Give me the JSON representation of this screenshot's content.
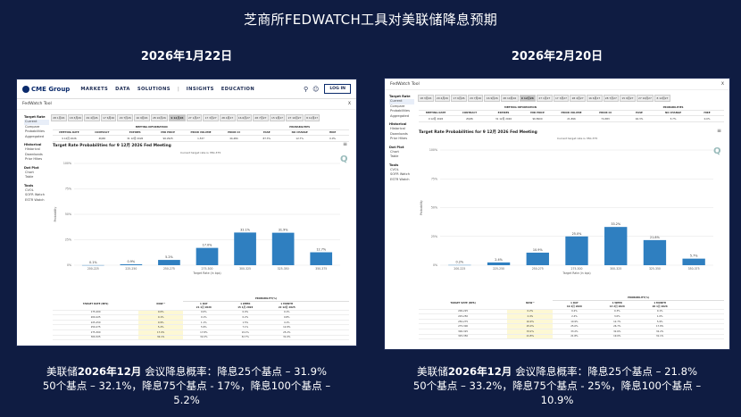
{
  "slide": {
    "title": "芝商所FEDWATCH工具对美联储降息预期",
    "left_date": "2026年1月22日",
    "right_date": "2026年2月20日",
    "left_caption": {
      "prefix": "美联储",
      "bold": "2026年12月",
      "line1_rest": " 会议降息概率：降息25个基点 – 31.9%",
      "line2": "50个基点 – 32.1%，降息75个基点 - 17%，降息100个基点 –",
      "line3": "5.2%"
    },
    "right_caption": {
      "prefix": "美联储",
      "bold": "2026年12月",
      "line1_rest": " 会议降息概率：降息25个基点 – 21.8%",
      "line2": "50个基点 – 33.2%，降息75个基点 - 25%，降息100个基点 –",
      "line3": "10.9%"
    }
  },
  "left_shot": {
    "logo": "CME Group",
    "nav": [
      "MARKETS",
      "DATA",
      "SOLUTIONS",
      "|",
      "INSIGHTS",
      "EDUCATION"
    ],
    "login": "LOG IN",
    "tool_title": "FedWatch Tool",
    "close": "X",
    "sidebar": [
      {
        "group": "Target Rate",
        "items": [
          "Current",
          "Compare",
          "Probabilities",
          "Aggregated"
        ]
      },
      {
        "group": "Historical",
        "items": [
          "Historical",
          "Downloads",
          "Prior Hikes"
        ]
      },
      {
        "group": "Dot Plot",
        "items": [
          "Chart",
          "Table"
        ]
      },
      {
        "group": "Tools",
        "items": [
          "CVOL",
          "SOFR Watch",
          "ESTR Watch"
        ]
      }
    ],
    "tabs": [
      "28 1月26",
      "18 3月26",
      "29 4月26",
      "17 6月26",
      "29 7月26",
      "16 9月26",
      "28 10月26",
      "9 12月26",
      "27 1月27",
      "17 3月27",
      "28 4月27",
      "16 6月27",
      "28 7月27",
      "15 9月27",
      "27 10月27",
      "8 12月27"
    ],
    "selected_tab": 7,
    "meeting": {
      "group1": "MEETING INFORMATION",
      "group2": "PROBABILITIES",
      "headers": [
        "MEETING DATE",
        "CONTRACT",
        "EXPIRES",
        "MID PRICE",
        "PRIOR VOLUME",
        "PRIOR OI",
        "EASE",
        "NO CHANGE",
        "HIKE"
      ],
      "values": [
        "9 12月 2026",
        "ZQZ6",
        "31 12月 2026",
        "96.2925",
        "1,537",
        "44,484",
        "87.3%",
        "12.7%",
        "0.0%"
      ]
    },
    "chart_title": "Target Rate Probabilities for 9 12月 2026 Fed Meeting",
    "chart_subtitle": "Current target rate is 350-375",
    "table_group": "PROBABILITY(%)",
    "table_headers": [
      "TARGET RATE (BPS)",
      "NOW *",
      "1 DAY\n21 1月 2026",
      "1 WEEK\n15 1月 2026",
      "1 MONTH\n22 12月 2025"
    ],
    "table_rows": [
      [
        "175-200",
        "0.0%",
        "0.0%",
        "0.0%",
        "0.1%"
      ],
      [
        "200-225",
        "0.1%",
        "0.1%",
        "0.2%",
        "0.8%"
      ],
      [
        "225-250",
        "0.9%",
        "1.1%",
        "1.5%",
        "4.1%"
      ],
      [
        "250-275",
        "5.2%",
        "5.9%",
        "7.1%",
        "12.8%"
      ],
      [
        "275-300",
        "17.0%",
        "17.8%",
        "19.1%",
        "25.2%"
      ],
      [
        "300-325",
        "32.1%",
        "32.2%",
        "32.7%",
        "31.0%"
      ]
    ]
  },
  "right_shot": {
    "tool_title": "FedWatch Tool",
    "close": "X",
    "sidebar": [
      {
        "group": "Target Rate",
        "items": [
          "Current",
          "Compare",
          "Probabilities",
          "Aggregated"
        ]
      },
      {
        "group": "Historical",
        "items": [
          "Historical",
          "Downloads",
          "Prior Hikes"
        ]
      },
      {
        "group": "Dot Plot",
        "items": [
          "Chart",
          "Table"
        ]
      },
      {
        "group": "Tools",
        "items": [
          "CVOL",
          "SOFR Watch",
          "ESTR Watch"
        ]
      }
    ],
    "tabs": [
      "18 3月26",
      "29 4月26",
      "17 6月26",
      "29 7月26",
      "16 9月26",
      "28 10月26",
      "9 12月26",
      "27 1月27",
      "17 3月27",
      "28 4月27",
      "16 6月27",
      "28 7月27",
      "15 9月27",
      "27 10月27",
      "8 12月27"
    ],
    "selected_tab": 6,
    "meeting": {
      "group1": "MEETING INFORMATION",
      "group2": "PROBABILITIES",
      "headers": [
        "MEETING DATE",
        "CONTRACT",
        "EXPIRES",
        "MID PRICE",
        "PRIOR VOLUME",
        "PRIOR OI",
        "EASE",
        "NO CHANGE",
        "HIKE"
      ],
      "values": [
        "9 12月 2026",
        "ZQZ6",
        "31 12月 2026",
        "96.8900",
        "21,896",
        "74,383",
        "94.3%",
        "5.7%",
        "0.0%"
      ]
    },
    "chart_title": "Target Rate Probabilities for 9 12月 2026 Fed Meeting",
    "chart_subtitle": "Current target rate is 350-375",
    "table_group": "PROBABILITY(%)",
    "table_headers": [
      "TARGET RATE (BPS)",
      "NOW *",
      "1 DAY\n19 2月 2026",
      "1 WEEK\n13 2月 2026",
      "1 MONTH\n20 1月 2026"
    ],
    "table_rows": [
      [
        "200-225",
        "0.2%",
        "0.2%",
        "0.3%",
        "0.1%"
      ],
      [
        "225-250",
        "2.4%",
        "2.4%",
        "3.0%",
        "1.0%"
      ],
      [
        "250-275",
        "10.9%",
        "10.9%",
        "12.7%",
        "5.9%"
      ],
      [
        "275-300",
        "25.0%",
        "25.0%",
        "26.7%",
        "17.8%"
      ],
      [
        "300-325",
        "33.2%",
        "33.2%",
        "32.6%",
        "32.2%"
      ],
      [
        "325-350",
        "21.8%",
        "21.8%",
        "19.0%",
        "31.1%"
      ]
    ]
  },
  "chart_data": [
    {
      "type": "bar",
      "title": "Target Rate Probabilities for 9 12月 2026 Fed Meeting",
      "subtitle": "Current target rate is 350-375",
      "xlabel": "Target Rate (in bps)",
      "ylabel": "Probability",
      "ylim": [
        0,
        100
      ],
      "yticks": [
        "0%",
        "25%",
        "50%",
        "75%",
        "100%"
      ],
      "categories": [
        "200-225",
        "225-250",
        "250-275",
        "275-300",
        "300-325",
        "325-350",
        "350-375"
      ],
      "values": [
        0.1,
        0.9,
        5.2,
        17.0,
        32.1,
        31.9,
        12.7
      ],
      "labels": [
        "0.1%",
        "0.9%",
        "5.2%",
        "17.0%",
        "32.1%",
        "31.9%",
        "12.7%"
      ],
      "color": "#2f7fc0"
    },
    {
      "type": "bar",
      "title": "Target Rate Probabilities for 9 12月 2026 Fed Meeting",
      "subtitle": "Current target rate is 350-375",
      "xlabel": "Target Rate (in bps)",
      "ylabel": "Probability",
      "ylim": [
        0,
        100
      ],
      "yticks": [
        "0%",
        "25%",
        "50%",
        "75%",
        "100%"
      ],
      "categories": [
        "200-225",
        "225-250",
        "250-275",
        "275-300",
        "300-325",
        "325-350",
        "350-375"
      ],
      "values": [
        0.2,
        2.4,
        10.9,
        25.0,
        33.2,
        21.8,
        5.7
      ],
      "labels": [
        "0.2%",
        "2.4%",
        "10.9%",
        "25.0%",
        "33.2%",
        "21.8%",
        "5.7%"
      ],
      "color": "#2f7fc0"
    }
  ]
}
